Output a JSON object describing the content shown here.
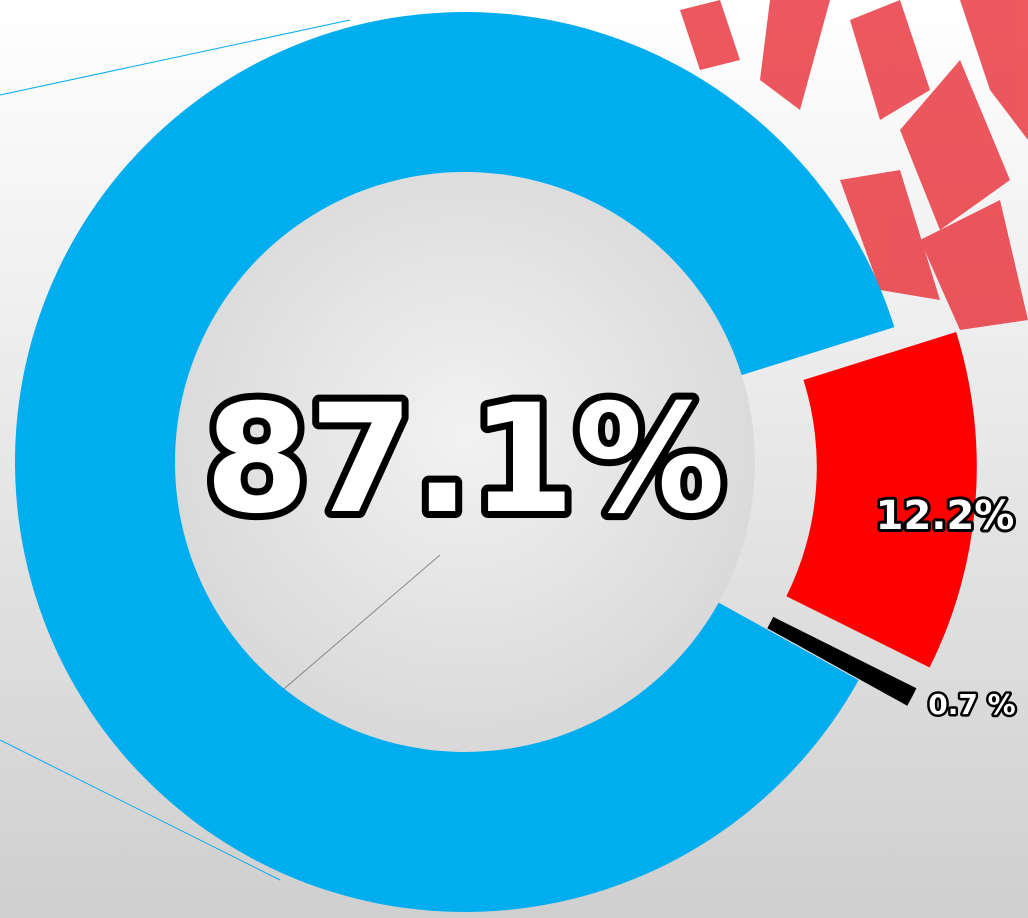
{
  "chart_data": {
    "type": "donut",
    "values": [
      87.1,
      12.2,
      0.7
    ],
    "value_labels": [
      "87.1%",
      "12.2%",
      "0.7 %"
    ],
    "colors": [
      "#00adee",
      "#ff0000",
      "#000000"
    ]
  }
}
